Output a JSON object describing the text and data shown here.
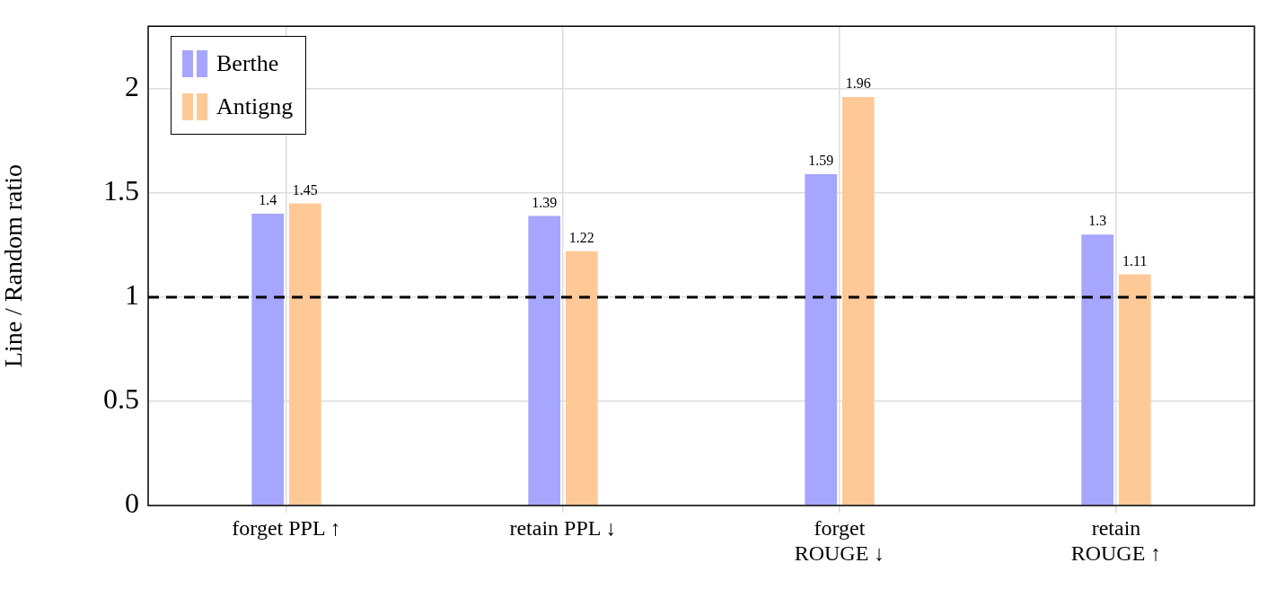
{
  "chart_data": {
    "type": "bar",
    "ylabel": "Line / Random ratio",
    "categories": [
      "forget PPL ↑",
      "retain PPL ↓",
      "forget\nROUGE ↓",
      "retain\nROUGE ↑"
    ],
    "series": [
      {
        "name": "Berthe",
        "color": "#a6a6ff",
        "values": [
          1.4,
          1.39,
          1.59,
          1.3
        ]
      },
      {
        "name": "Antigng",
        "color": "#ffc997",
        "values": [
          1.45,
          1.22,
          1.96,
          1.11
        ]
      }
    ],
    "ylim": [
      0,
      2.3
    ],
    "yticks": [
      0,
      0.5,
      1,
      1.5,
      2
    ],
    "grid": true,
    "legend": "top left",
    "data_labels": true,
    "ref_lines": [
      {
        "axis": "y",
        "value": 1,
        "color": "#000000",
        "line_style": "dashed"
      }
    ]
  }
}
